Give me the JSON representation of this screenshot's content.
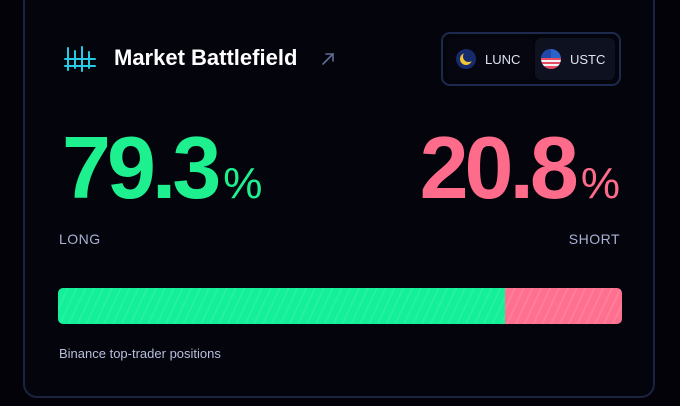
{
  "header": {
    "title": "Market Battlefield",
    "logo_icon": "signal-bars-icon",
    "link_icon": "arrow-up-right-icon"
  },
  "toggle": {
    "options": [
      {
        "label": "LUNC",
        "icon": "lunc-coin-icon",
        "selected": true
      },
      {
        "label": "USTC",
        "icon": "ustc-coin-icon",
        "selected": false
      }
    ]
  },
  "long": {
    "value": "79.3",
    "unit": "%",
    "label": "LONG",
    "fraction": 0.793,
    "color": "#1ef08f"
  },
  "short": {
    "value": "20.8",
    "unit": "%",
    "label": "SHORT",
    "fraction": 0.208,
    "color": "#ff6b8b"
  },
  "caption": "Binance top-trader positions"
}
